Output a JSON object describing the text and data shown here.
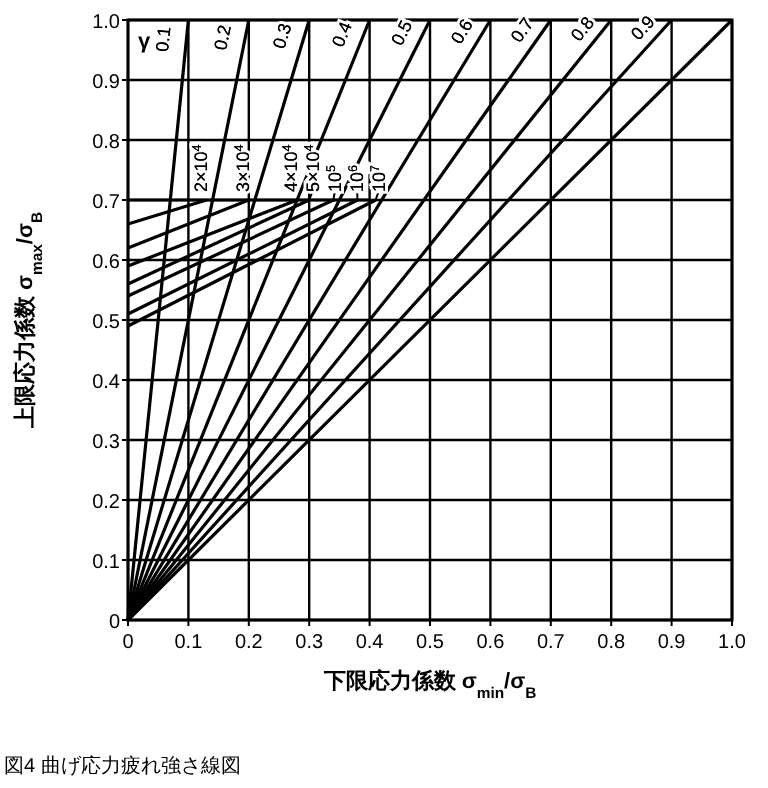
{
  "chart_data": {
    "type": "line",
    "xlabel": "下限応力係数 σ$_{min}$/σ$_{B}$",
    "ylabel": "上限応力係数 σ$_{max}$/σ$_{B}$",
    "annotations": [
      "γ",
      "図4 曲げ応力疲れ強さ線図"
    ],
    "xlim": [
      0,
      1
    ],
    "ylim": [
      0,
      1
    ],
    "xticks": [
      0,
      0.1,
      0.2,
      0.3,
      0.4,
      0.5,
      0.6,
      0.7,
      0.8,
      0.9,
      {
        "value": 1,
        "label": "1.0"
      }
    ],
    "yticks": [
      0,
      0.1,
      0.2,
      0.3,
      0.4,
      0.5,
      0.6,
      0.7,
      0.8,
      0.9,
      {
        "value": 1,
        "label": "1.0"
      }
    ],
    "grid": true,
    "marker": "none",
    "line_style": "solid",
    "series": [
      {
        "name": "0.1",
        "color": "#000000",
        "x": [
          0,
          0.1
        ],
        "values": [
          0,
          1
        ]
      },
      {
        "name": "0.2",
        "color": "#000000",
        "x": [
          0,
          0.2
        ],
        "values": [
          0,
          1
        ]
      },
      {
        "name": "0.3",
        "color": "#000000",
        "x": [
          0,
          0.3
        ],
        "values": [
          0,
          1
        ]
      },
      {
        "name": "0.4",
        "color": "#000000",
        "x": [
          0,
          0.4
        ],
        "values": [
          0,
          1
        ]
      },
      {
        "name": "0.5",
        "color": "#000000",
        "x": [
          0,
          0.5
        ],
        "values": [
          0,
          1
        ]
      },
      {
        "name": "0.6",
        "color": "#000000",
        "x": [
          0,
          0.6
        ],
        "values": [
          0,
          1
        ]
      },
      {
        "name": "0.7",
        "color": "#000000",
        "x": [
          0,
          0.7
        ],
        "values": [
          0,
          1
        ]
      },
      {
        "name": "0.8",
        "color": "#000000",
        "x": [
          0,
          0.8
        ],
        "values": [
          0,
          1
        ]
      },
      {
        "name": "0.9",
        "color": "#000000",
        "x": [
          0,
          0.9
        ],
        "values": [
          0,
          1
        ]
      },
      {
        "color": "#000000",
        "x": [
          0,
          1
        ],
        "values": [
          0,
          1
        ]
      },
      {
        "color": "#000000",
        "x": [
          0,
          0.4
        ],
        "values": [
          0.7,
          0.7
        ]
      },
      {
        "name": "2×10$^{4}$",
        "color": "#000000",
        "x": [
          0,
          0.13
        ],
        "values": [
          0.66,
          0.7
        ]
      },
      {
        "name": "3×10$^{4}$",
        "color": "#000000",
        "x": [
          0,
          0.2
        ],
        "values": [
          0.62,
          0.7
        ]
      },
      {
        "name": "4×10$^{4}$",
        "color": "#000000",
        "x": [
          0,
          0.28
        ],
        "values": [
          0.59,
          0.7
        ]
      },
      {
        "name": "5×10$^{4}$",
        "color": "#000000",
        "x": [
          0,
          0.3
        ],
        "values": [
          0.56,
          0.7
        ]
      },
      {
        "name": "10$^{5}$",
        "color": "#000000",
        "x": [
          0,
          0.34
        ],
        "values": [
          0.54,
          0.7
        ]
      },
      {
        "name": "10$^{6}$",
        "color": "#000000",
        "x": [
          0,
          0.38
        ],
        "values": [
          0.51,
          0.7
        ]
      },
      {
        "name": "10$^{7}$",
        "color": "#000000",
        "x": [
          0,
          0.41
        ],
        "values": [
          0.49,
          0.7
        ]
      }
    ]
  }
}
